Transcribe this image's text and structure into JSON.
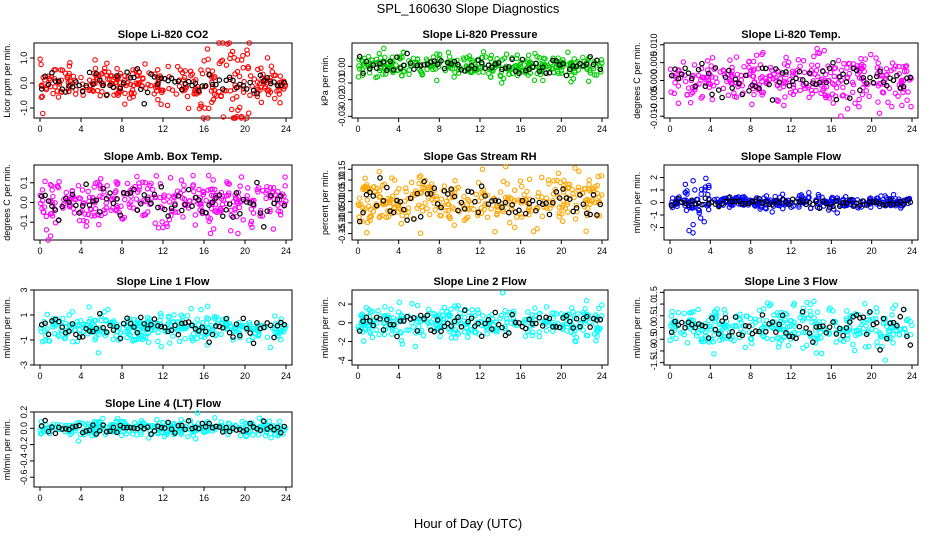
{
  "title": "SPL_160630  Slope Diagnostics",
  "xlabel": "Hour of Day (UTC)",
  "colors": {
    "red": "#ff0000",
    "green": "#00cc00",
    "magenta": "#ff00ff",
    "orange": "#ffa500",
    "blue": "#0000ff",
    "cyan": "#00ffff",
    "black": "#000000"
  },
  "chart_data": [
    {
      "type": "scatter",
      "title": "Slope Li-820 CO2",
      "ylabel": "Licor ppm per min.",
      "color": "#ff0000",
      "xlim": [
        0,
        24
      ],
      "xticks": [
        0,
        4,
        8,
        12,
        16,
        20,
        24
      ],
      "ylim": [
        -1.4,
        1.6
      ],
      "yticks": [
        -1.0,
        0.0,
        1.0
      ],
      "ytick_labels": [
        "-1.0",
        "0.0",
        "1.0"
      ],
      "summary": {
        "hourly_mean": 0.0,
        "spread": 0.35,
        "spread_hours_16_20": 0.9
      }
    },
    {
      "type": "scatter",
      "title": "Slope Li-820 Pressure",
      "ylabel": "kPa per min.",
      "color": "#00cc00",
      "xlim": [
        0,
        24
      ],
      "xticks": [
        0,
        4,
        8,
        12,
        16,
        20,
        24
      ],
      "ylim": [
        -0.031,
        0.014
      ],
      "yticks": [
        -0.03,
        -0.02,
        -0.01,
        0.0
      ],
      "ytick_labels": [
        "-0.03",
        "-0.02",
        "-0.01",
        "0.00"
      ],
      "summary": {
        "hourly_mean": 0.0,
        "spread": 0.0035
      }
    },
    {
      "type": "scatter",
      "title": "Slope Li-820 Temp.",
      "ylabel": "degrees C per min.",
      "color": "#ff00ff",
      "xlim": [
        0,
        24
      ],
      "xticks": [
        0,
        4,
        8,
        12,
        16,
        20,
        24
      ],
      "ylim": [
        -0.0105,
        0.0105
      ],
      "yticks": [
        -0.01,
        -0.005,
        0.0,
        0.005,
        0.01
      ],
      "ytick_labels": [
        "-0.010",
        "-0.005",
        "0.000",
        "0.005",
        "0.010"
      ],
      "summary": {
        "hourly_mean": 0.0,
        "spread": 0.0035
      }
    },
    {
      "type": "scatter",
      "title": "Slope Amb. Box Temp.",
      "ylabel": "degrees C per min.",
      "color": "#ff00ff",
      "xlim": [
        0,
        24
      ],
      "xticks": [
        0,
        4,
        8,
        12,
        16,
        20,
        24
      ],
      "ylim": [
        -0.19,
        0.19
      ],
      "yticks": [
        -0.1,
        0.0,
        0.1
      ],
      "ytick_labels": [
        "-0.1",
        "0.0",
        "0.1"
      ],
      "summary": {
        "hourly_mean": 0.0,
        "spread": 0.06
      }
    },
    {
      "type": "scatter",
      "title": "Slope Gas Stream RH",
      "ylabel": "percent per min.",
      "color": "#ffa500",
      "xlim": [
        0,
        24
      ],
      "xticks": [
        0,
        4,
        8,
        12,
        16,
        20,
        24
      ],
      "ylim": [
        -0.18,
        0.17
      ],
      "yticks": [
        -0.15,
        -0.1,
        -0.05,
        0.0,
        0.05,
        0.1,
        0.15
      ],
      "ytick_labels": [
        "-0.15",
        "-0.10",
        "-0.05",
        "0.00",
        "0.05",
        "0.10",
        "0.15"
      ],
      "summary": {
        "hourly_mean": 0.0,
        "spread": 0.06
      }
    },
    {
      "type": "scatter",
      "title": "Slope Sample Flow",
      "ylabel": "ml/min per min.",
      "color": "#0000ff",
      "xlim": [
        0,
        24
      ],
      "xticks": [
        0,
        4,
        8,
        12,
        16,
        20,
        24
      ],
      "ylim": [
        -3.0,
        3.0
      ],
      "yticks": [
        -2,
        -1,
        0,
        1,
        2
      ],
      "ytick_labels": [
        "-2",
        "-1",
        "0",
        "1",
        "2"
      ],
      "summary": {
        "hourly_mean": 0.0,
        "spread": 0.25,
        "spread_hours_2_4": 1.2
      }
    },
    {
      "type": "scatter",
      "title": "Slope Line 1 Flow",
      "ylabel": "ml/min per min.",
      "color": "#00ffff",
      "xlim": [
        0,
        24
      ],
      "xticks": [
        0,
        4,
        8,
        12,
        16,
        20,
        24
      ],
      "ylim": [
        -3,
        3
      ],
      "yticks": [
        -3,
        -1,
        1,
        3
      ],
      "ytick_labels": [
        "-3",
        "-1",
        "1",
        "3"
      ],
      "summary": {
        "hourly_mean": 0.0,
        "spread": 0.6
      }
    },
    {
      "type": "scatter",
      "title": "Slope Line 2 Flow",
      "ylabel": "ml/min per min.",
      "color": "#00ffff",
      "xlim": [
        0,
        24
      ],
      "xticks": [
        0,
        4,
        8,
        12,
        16,
        20,
        24
      ],
      "ylim": [
        -4.5,
        3.5
      ],
      "yticks": [
        -4,
        -2,
        0,
        2
      ],
      "ytick_labels": [
        "-4",
        "-2",
        "0",
        "2"
      ],
      "summary": {
        "hourly_mean": 0.0,
        "spread": 0.9
      }
    },
    {
      "type": "scatter",
      "title": "Slope Line 3 Flow",
      "ylabel": "ml/min per min.",
      "color": "#00ffff",
      "xlim": [
        0,
        24
      ],
      "xticks": [
        0,
        4,
        8,
        12,
        16,
        20,
        24
      ],
      "ylim": [
        -1.6,
        1.6
      ],
      "yticks": [
        -1.5,
        -1.0,
        -0.5,
        0.0,
        0.5,
        1.0,
        1.5
      ],
      "ytick_labels": [
        "-1.5",
        "-1.0",
        "-0.5",
        "0.0",
        "0.5",
        "1.0",
        "1.5"
      ],
      "summary": {
        "hourly_mean": 0.0,
        "spread": 0.45
      }
    },
    {
      "type": "scatter",
      "title": "Slope Line 4 (LT) Flow",
      "ylabel": "ml/min per min.",
      "color": "#00ffff",
      "xlim": [
        0,
        24
      ],
      "xticks": [
        0,
        4,
        8,
        12,
        16,
        20,
        24
      ],
      "ylim": [
        -0.72,
        0.2
      ],
      "yticks": [
        -0.6,
        -0.4,
        -0.2,
        0.0,
        0.2
      ],
      "ytick_labels": [
        "-0.6",
        "-0.4",
        "-0.2",
        "0.0",
        "0.2"
      ],
      "summary": {
        "hourly_mean": 0.0,
        "spread": 0.05
      }
    }
  ]
}
